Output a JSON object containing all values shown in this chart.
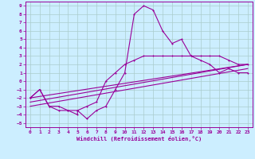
{
  "xlabel": "Windchill (Refroidissement éolien,°C)",
  "bg_color": "#cceeff",
  "grid_color": "#aacccc",
  "line_color": "#990099",
  "xlim": [
    -0.5,
    23.5
  ],
  "ylim": [
    -5.5,
    9.5
  ],
  "xticks": [
    0,
    1,
    2,
    3,
    4,
    5,
    6,
    7,
    8,
    9,
    10,
    11,
    12,
    13,
    14,
    15,
    16,
    17,
    18,
    19,
    20,
    21,
    22,
    23
  ],
  "yticks": [
    -5,
    -4,
    -3,
    -2,
    -1,
    0,
    1,
    2,
    3,
    4,
    5,
    6,
    7,
    8,
    9
  ],
  "curve1_x": [
    0,
    1,
    2,
    3,
    4,
    5,
    5,
    6,
    7,
    8,
    9,
    10,
    11,
    12,
    13,
    14,
    15,
    16,
    17,
    18,
    19,
    20,
    21,
    22,
    23
  ],
  "curve1_y": [
    -2,
    -1,
    -3,
    -3.5,
    -3.5,
    -4,
    -3.5,
    -4.5,
    -3.5,
    -3,
    -1,
    1,
    8,
    9,
    8.5,
    6,
    4.5,
    5,
    3,
    2.5,
    2,
    1,
    1.5,
    1,
    1
  ],
  "curve2_x": [
    0,
    1,
    2,
    3,
    4,
    5,
    6,
    7,
    8,
    9,
    10,
    11,
    12,
    13,
    14,
    15,
    16,
    17,
    18,
    19,
    20,
    21,
    22,
    23
  ],
  "curve2_y": [
    -2,
    -1,
    -3,
    -3,
    -3.5,
    -3.5,
    -3,
    -2.5,
    0,
    1,
    2,
    2.5,
    3,
    3,
    3,
    3,
    3,
    3,
    3,
    3,
    3,
    2.5,
    2,
    2
  ],
  "line1_x": [
    0,
    23
  ],
  "line1_y": [
    -2,
    2
  ],
  "line2_x": [
    0,
    23
  ],
  "line2_y": [
    -2.5,
    2
  ],
  "line3_x": [
    0,
    23
  ],
  "line3_y": [
    -3,
    1.5
  ]
}
